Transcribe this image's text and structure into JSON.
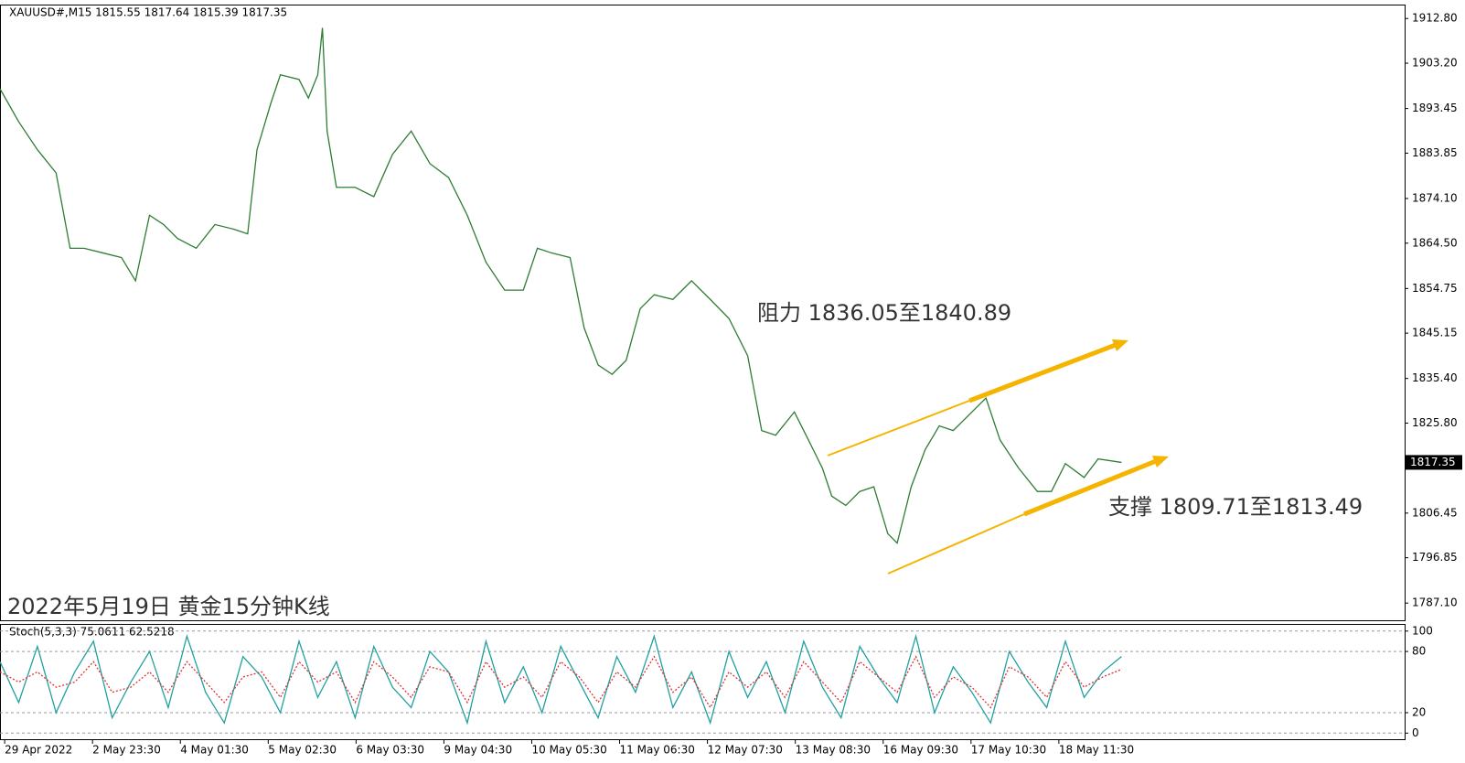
{
  "chart_data": [
    {
      "type": "line",
      "title": "XAUUSD#,M15  1815.55 1817.64 1815.39 1817.35",
      "caption": "2022年5月19日 黄金15分钟K线",
      "annotations": [
        "阻力 1836.05至1840.89",
        "支撑 1809.71至1813.49"
      ],
      "last_price": 1817.35,
      "x": [
        0,
        20,
        40,
        60,
        75,
        90,
        110,
        130,
        145,
        160,
        175,
        190,
        210,
        230,
        250,
        265,
        275,
        290,
        300,
        320,
        330,
        340,
        345,
        350,
        360,
        380,
        400,
        420,
        440,
        460,
        480,
        500,
        520,
        540,
        560,
        575,
        590,
        610,
        625,
        640,
        655,
        670,
        685,
        700,
        720,
        740,
        760,
        780,
        800,
        815,
        830,
        850,
        865,
        880,
        890,
        905,
        920,
        935,
        950,
        960,
        975,
        990,
        1005,
        1020,
        1040,
        1055,
        1070,
        1090,
        1110,
        1125,
        1140,
        1160,
        1175,
        1200
      ],
      "series": [
        {
          "color": "#2e7d32",
          "values": [
            1897.7,
            1890.6,
            1884.6,
            1879.6,
            1863.4,
            1863.4,
            1862.4,
            1861.4,
            1856.4,
            1870.5,
            1868.5,
            1865.5,
            1863.4,
            1868.5,
            1867.5,
            1866.5,
            1884.6,
            1894.7,
            1900.7,
            1899.7,
            1895.7,
            1900.7,
            1910.8,
            1888.6,
            1876.5,
            1876.5,
            1874.5,
            1883.6,
            1888.6,
            1881.6,
            1878.6,
            1870.5,
            1860.4,
            1854.4,
            1854.4,
            1863.4,
            1862.4,
            1861.4,
            1846.3,
            1838.3,
            1836.3,
            1839.3,
            1850.4,
            1853.4,
            1852.4,
            1856.4,
            1852.4,
            1848.3,
            1840.3,
            1824.2,
            1823.2,
            1828.2,
            1822.2,
            1816.1,
            1810.1,
            1808.1,
            1811.1,
            1812.1,
            1802.0,
            1800.0,
            1812.1,
            1820.1,
            1825.2,
            1824.2,
            1828.2,
            1831.2,
            1822.2,
            1816.1,
            1811.1,
            1811.1,
            1817.1,
            1814.1,
            1818.1,
            1817.35
          ]
        }
      ],
      "xlim": [
        0,
        1503
      ],
      "xticks": [
        {
          "value": 5,
          "label": "29 Apr 2022"
        },
        {
          "value": 99,
          "label": "2 May 23:30"
        },
        {
          "value": 193,
          "label": "4 May 01:30"
        },
        {
          "value": 287,
          "label": "5 May 02:30"
        },
        {
          "value": 381,
          "label": "6 May 03:30"
        },
        {
          "value": 475,
          "label": "9 May 04:30"
        },
        {
          "value": 569,
          "label": "10 May 05:30"
        },
        {
          "value": 663,
          "label": "11 May 06:30"
        },
        {
          "value": 757,
          "label": "12 May 07:30"
        },
        {
          "value": 851,
          "label": "13 May 08:30"
        },
        {
          "value": 945,
          "label": "16 May 09:30"
        },
        {
          "value": 1039,
          "label": "17 May 10:30"
        },
        {
          "value": 1133,
          "label": "18 May 11:30"
        }
      ],
      "ylim": [
        1783.4,
        1915.8
      ],
      "yticks": [
        {
          "value": 1912.8,
          "label": "1912.80"
        },
        {
          "value": 1903.2,
          "label": "1903.20"
        },
        1893.45,
        1883.85,
        {
          "value": 1874.1,
          "label": "1874.10"
        },
        {
          "value": 1864.5,
          "label": "1864.50"
        },
        1854.75,
        1845.15,
        {
          "value": 1835.4,
          "label": "1835.40"
        },
        {
          "value": 1825.8,
          "label": "1825.80"
        },
        1806.45,
        1796.85,
        {
          "value": 1787.1,
          "label": "1787.10"
        }
      ]
    },
    {
      "type": "line",
      "title": "Stoch(5,3,3) 75.0611 62.5218",
      "x": [
        0,
        20,
        40,
        60,
        80,
        100,
        120,
        140,
        160,
        180,
        200,
        220,
        240,
        260,
        280,
        300,
        320,
        340,
        360,
        380,
        400,
        420,
        440,
        460,
        480,
        500,
        520,
        540,
        560,
        580,
        600,
        620,
        640,
        660,
        680,
        700,
        720,
        740,
        760,
        780,
        800,
        820,
        840,
        860,
        880,
        900,
        920,
        940,
        960,
        980,
        1000,
        1020,
        1040,
        1060,
        1080,
        1100,
        1120,
        1140,
        1160,
        1180,
        1200
      ],
      "series": [
        {
          "color": "#20a0a0",
          "values": [
            70,
            30,
            85,
            20,
            60,
            90,
            15,
            50,
            80,
            25,
            95,
            40,
            10,
            75,
            55,
            20,
            90,
            35,
            70,
            15,
            85,
            45,
            25,
            80,
            60,
            10,
            90,
            30,
            65,
            20,
            85,
            50,
            15,
            75,
            40,
            95,
            25,
            60,
            10,
            80,
            35,
            70,
            20,
            90,
            45,
            15,
            85,
            55,
            30,
            95,
            20,
            65,
            40,
            10,
            80,
            50,
            25,
            90,
            35,
            60,
            75.0611
          ]
        },
        {
          "color": "#e03030",
          "dashed": true,
          "values": [
            60,
            50,
            60,
            45,
            50,
            70,
            40,
            45,
            60,
            40,
            70,
            50,
            30,
            55,
            60,
            35,
            70,
            50,
            60,
            30,
            70,
            55,
            35,
            65,
            60,
            30,
            70,
            45,
            55,
            35,
            70,
            55,
            30,
            60,
            45,
            75,
            40,
            55,
            25,
            60,
            45,
            60,
            35,
            70,
            50,
            30,
            70,
            55,
            40,
            75,
            35,
            55,
            45,
            25,
            65,
            55,
            35,
            70,
            45,
            55,
            62.5218
          ]
        }
      ],
      "xlim": [
        0,
        1503
      ],
      "ylim": [
        -6,
        107
      ],
      "yticks": [
        100,
        80,
        20,
        0
      ],
      "grid": true
    }
  ]
}
